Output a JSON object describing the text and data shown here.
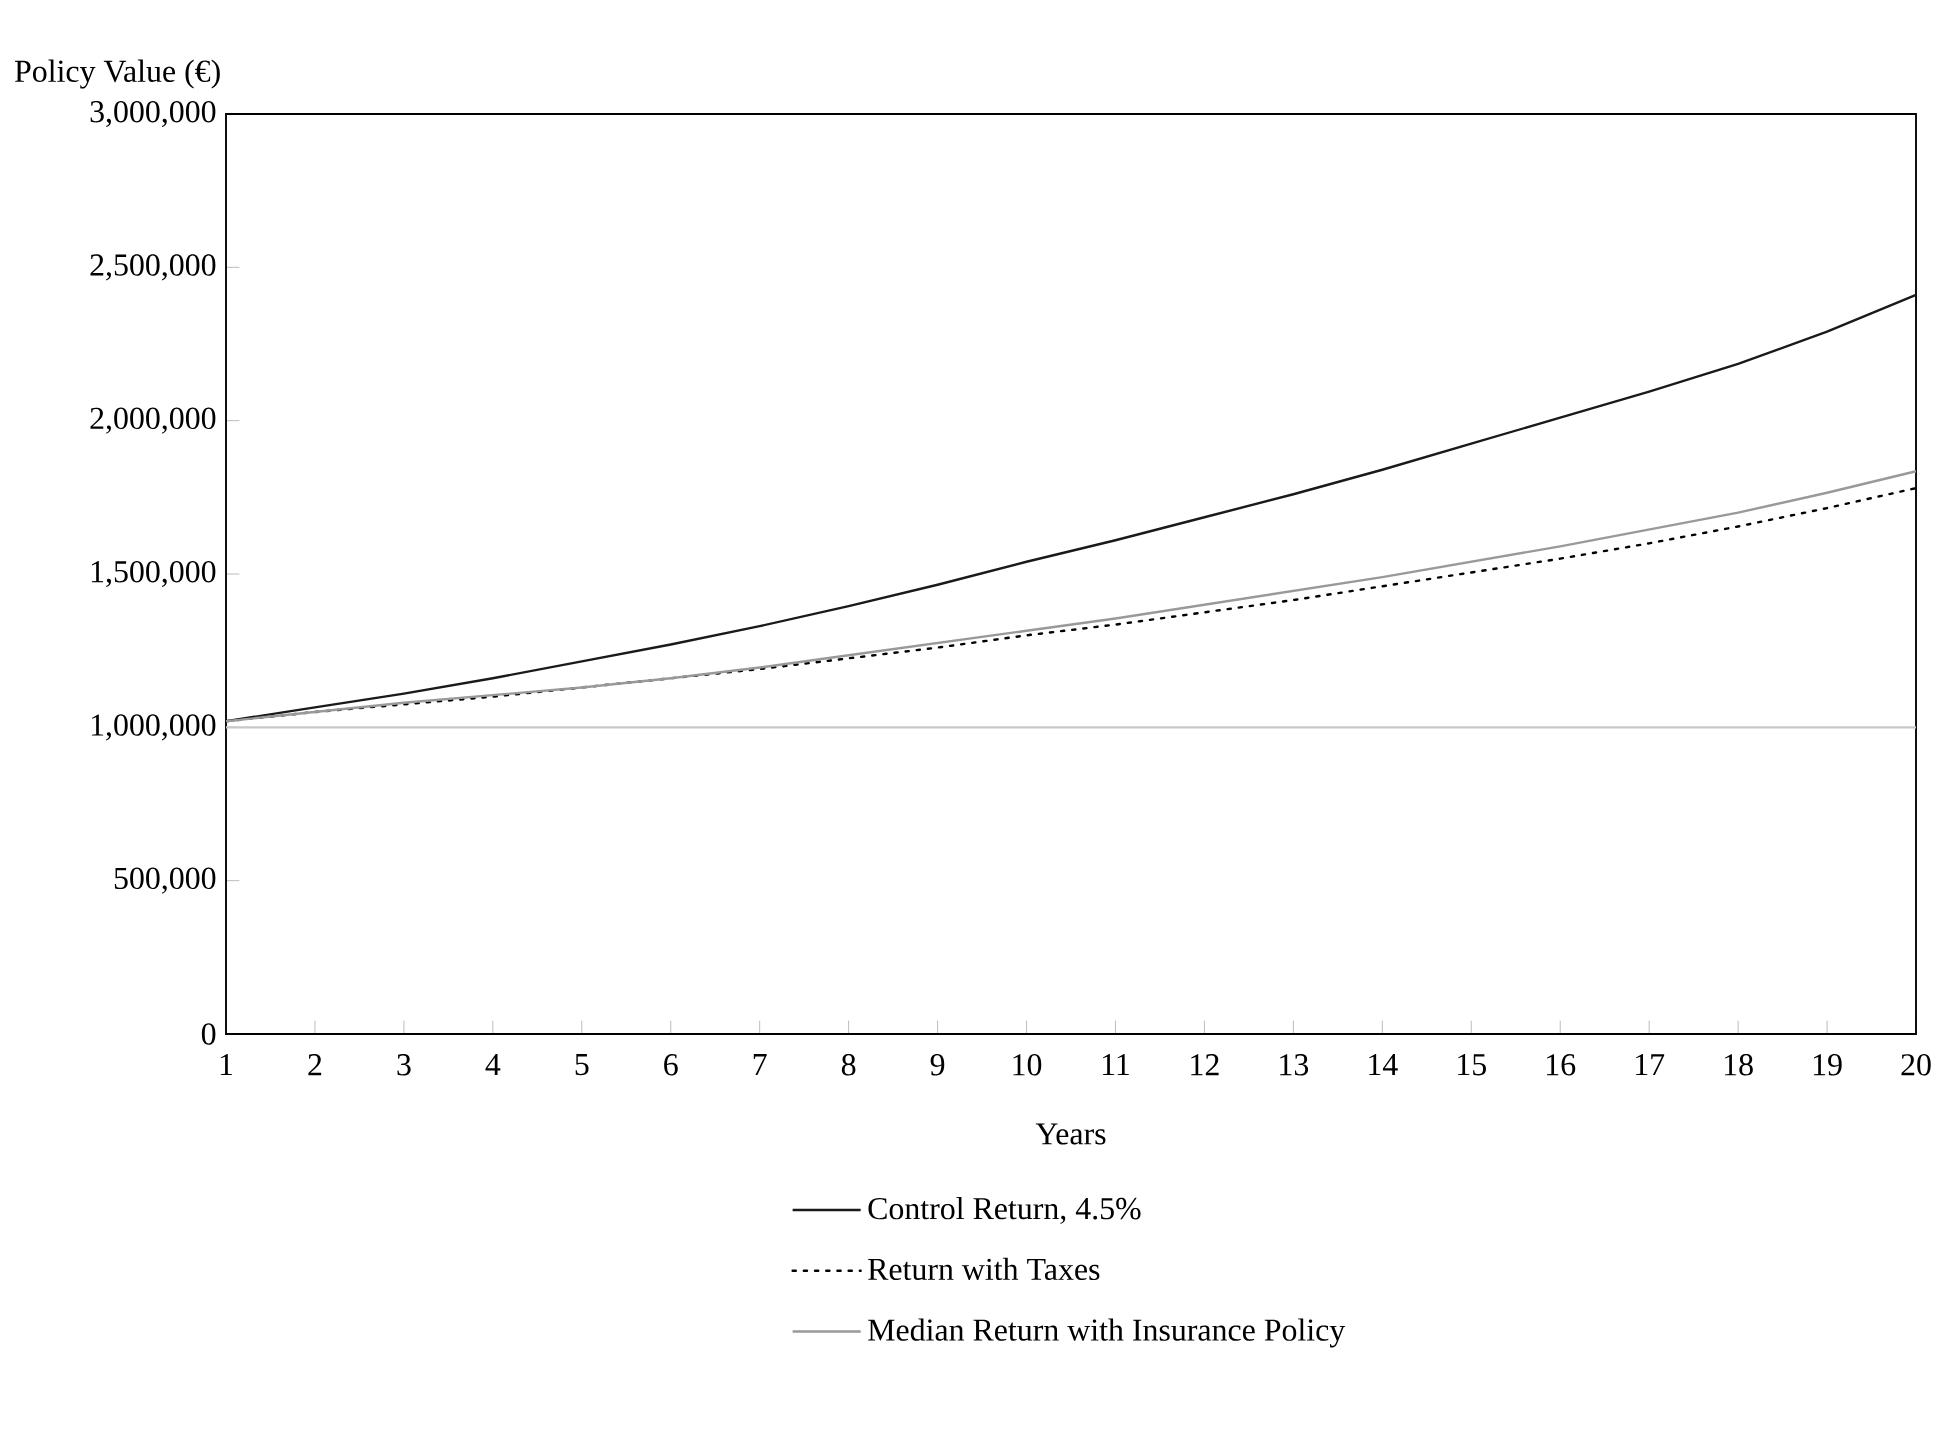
{
  "chart_data": {
    "type": "line",
    "xlabel": "Years",
    "ylabel": "Policy Value (€)",
    "x": [
      1,
      2,
      3,
      4,
      5,
      6,
      7,
      8,
      9,
      10,
      11,
      12,
      13,
      14,
      15,
      16,
      17,
      18,
      19,
      20
    ],
    "series": [
      {
        "name": "Control Return, 4.5%",
        "color": "#1a1a1a",
        "line_style": "solid",
        "values": [
          1020000,
          1065000,
          1110000,
          1160000,
          1215000,
          1270000,
          1330000,
          1395000,
          1465000,
          1540000,
          1610000,
          1685000,
          1760000,
          1840000,
          1925000,
          2010000,
          2095000,
          2185000,
          2290000,
          2410000
        ]
      },
      {
        "name": "Return with Taxes",
        "color": "#000000",
        "line_style": "dotted",
        "values": [
          1020000,
          1050000,
          1075000,
          1100000,
          1130000,
          1160000,
          1190000,
          1225000,
          1260000,
          1300000,
          1335000,
          1375000,
          1415000,
          1460000,
          1505000,
          1550000,
          1600000,
          1655000,
          1715000,
          1780000
        ]
      },
      {
        "name": "Median Return with Insurance Policy",
        "color": "#999999",
        "line_style": "solid",
        "values": [
          1020000,
          1050000,
          1080000,
          1105000,
          1130000,
          1160000,
          1195000,
          1235000,
          1275000,
          1315000,
          1355000,
          1400000,
          1445000,
          1490000,
          1540000,
          1590000,
          1645000,
          1700000,
          1765000,
          1835000
        ]
      }
    ],
    "xlim": [
      1,
      20
    ],
    "xticks": [
      1,
      2,
      3,
      4,
      5,
      6,
      7,
      8,
      9,
      10,
      11,
      12,
      13,
      14,
      15,
      16,
      17,
      18,
      19,
      20
    ],
    "ylim": [
      0,
      3000000
    ],
    "yticks": [
      {
        "value": 0,
        "label": "0"
      },
      {
        "value": 500000,
        "label": "500,000"
      },
      {
        "value": 1000000,
        "label": "1,000,000"
      },
      {
        "value": 1500000,
        "label": "1,500,000"
      },
      {
        "value": 2000000,
        "label": "2,000,000"
      },
      {
        "value": 2500000,
        "label": "2,500,000"
      },
      {
        "value": 3000000,
        "label": "3,000,000"
      }
    ],
    "ref_lines": [
      {
        "axis": "y",
        "value": 1000000,
        "color": "#c8c8c8"
      }
    ],
    "grid": false,
    "legend": "bottom"
  }
}
